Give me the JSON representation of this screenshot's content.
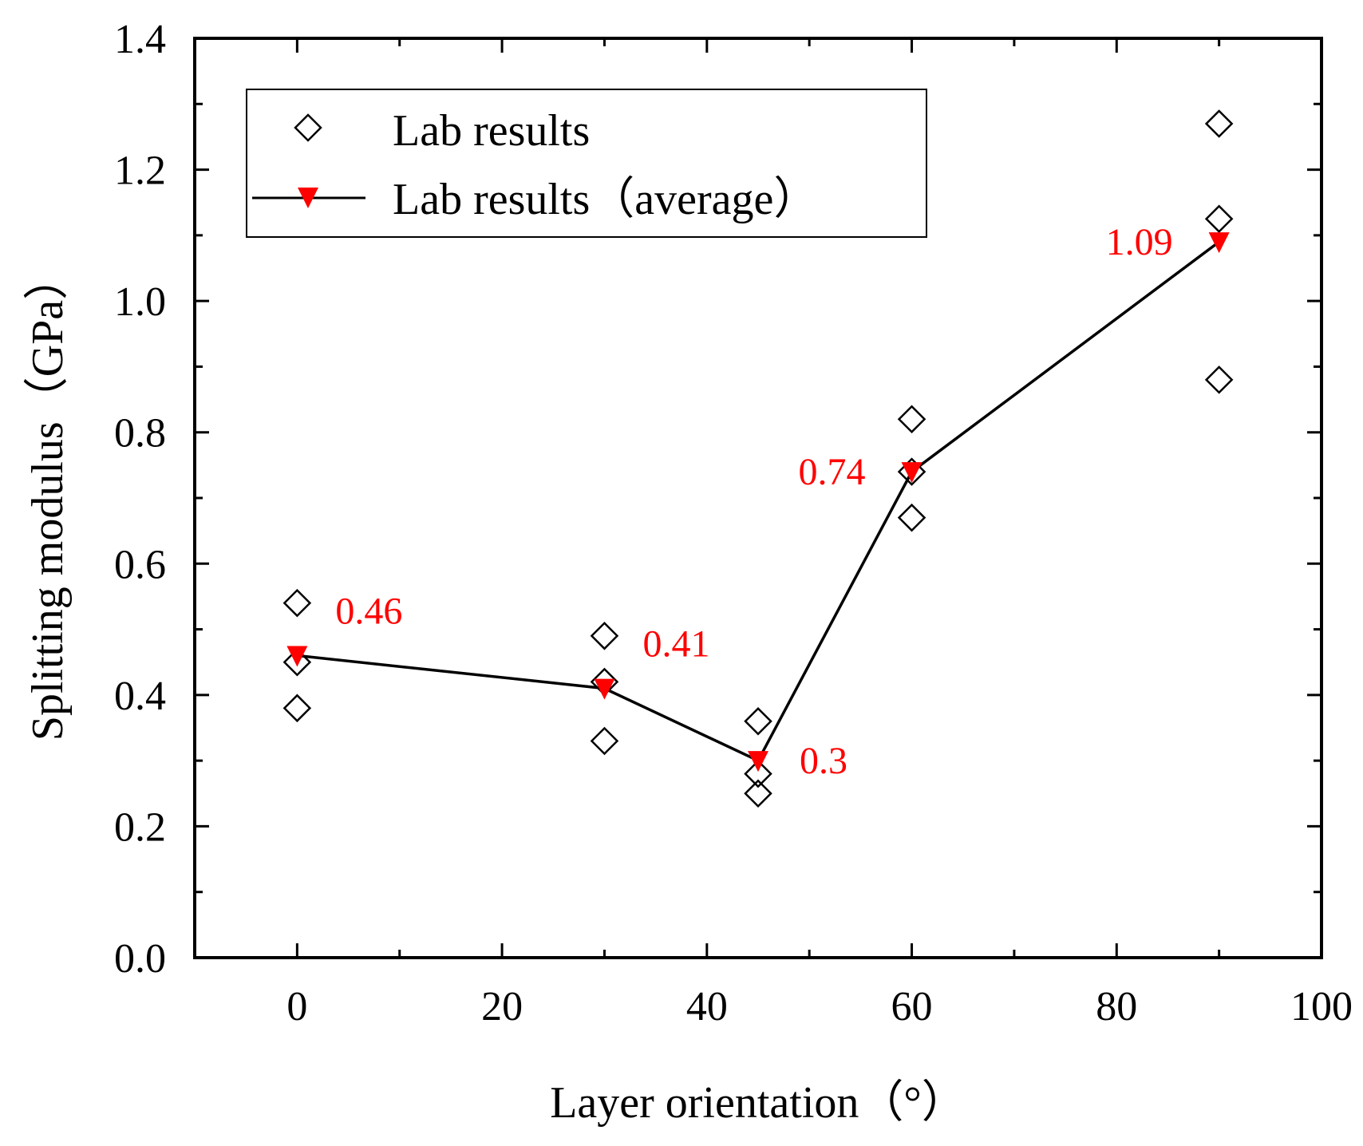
{
  "chart_data": {
    "type": "scatter",
    "title": "",
    "xlabel": "Layer orientation（°）",
    "ylabel": "Splitting modulus（GPa）",
    "xlim": [
      -10,
      100
    ],
    "ylim": [
      0.0,
      1.4
    ],
    "xticks": [
      "0",
      "20",
      "40",
      "60",
      "80",
      "100"
    ],
    "xtick_values": [
      0,
      20,
      40,
      60,
      80,
      100
    ],
    "yticks": [
      "0.0",
      "0.2",
      "0.4",
      "0.6",
      "0.8",
      "1.0",
      "1.2",
      "1.4"
    ],
    "ytick_values": [
      0.0,
      0.2,
      0.4,
      0.6,
      0.8,
      1.0,
      1.2,
      1.4
    ],
    "grid": false,
    "legend_position": "top-left",
    "accent_color": "#ff0000",
    "series": [
      {
        "name": "Lab results",
        "marker": "open-diamond",
        "color": "#000000",
        "points": [
          {
            "x": 0,
            "y": 0.54
          },
          {
            "x": 0,
            "y": 0.45
          },
          {
            "x": 0,
            "y": 0.38
          },
          {
            "x": 30,
            "y": 0.49
          },
          {
            "x": 30,
            "y": 0.42
          },
          {
            "x": 30,
            "y": 0.33
          },
          {
            "x": 45,
            "y": 0.36
          },
          {
            "x": 45,
            "y": 0.28
          },
          {
            "x": 45,
            "y": 0.25
          },
          {
            "x": 60,
            "y": 0.82
          },
          {
            "x": 60,
            "y": 0.74
          },
          {
            "x": 60,
            "y": 0.67
          },
          {
            "x": 90,
            "y": 1.27
          },
          {
            "x": 90,
            "y": 1.125
          },
          {
            "x": 90,
            "y": 0.88
          }
        ]
      },
      {
        "name": "Lab results（average）",
        "marker": "filled-down-triangle",
        "color": "#ff0000",
        "line_color": "#000000",
        "points": [
          {
            "x": 0,
            "y": 0.46,
            "label": "0.46",
            "label_side": "right-above"
          },
          {
            "x": 30,
            "y": 0.41,
            "label": "0.41",
            "label_side": "right-above"
          },
          {
            "x": 45,
            "y": 0.3,
            "label": "0.3",
            "label_side": "right"
          },
          {
            "x": 60,
            "y": 0.74,
            "label": "0.74",
            "label_side": "left"
          },
          {
            "x": 90,
            "y": 1.09,
            "label": "1.09",
            "label_side": "left"
          }
        ]
      }
    ]
  }
}
